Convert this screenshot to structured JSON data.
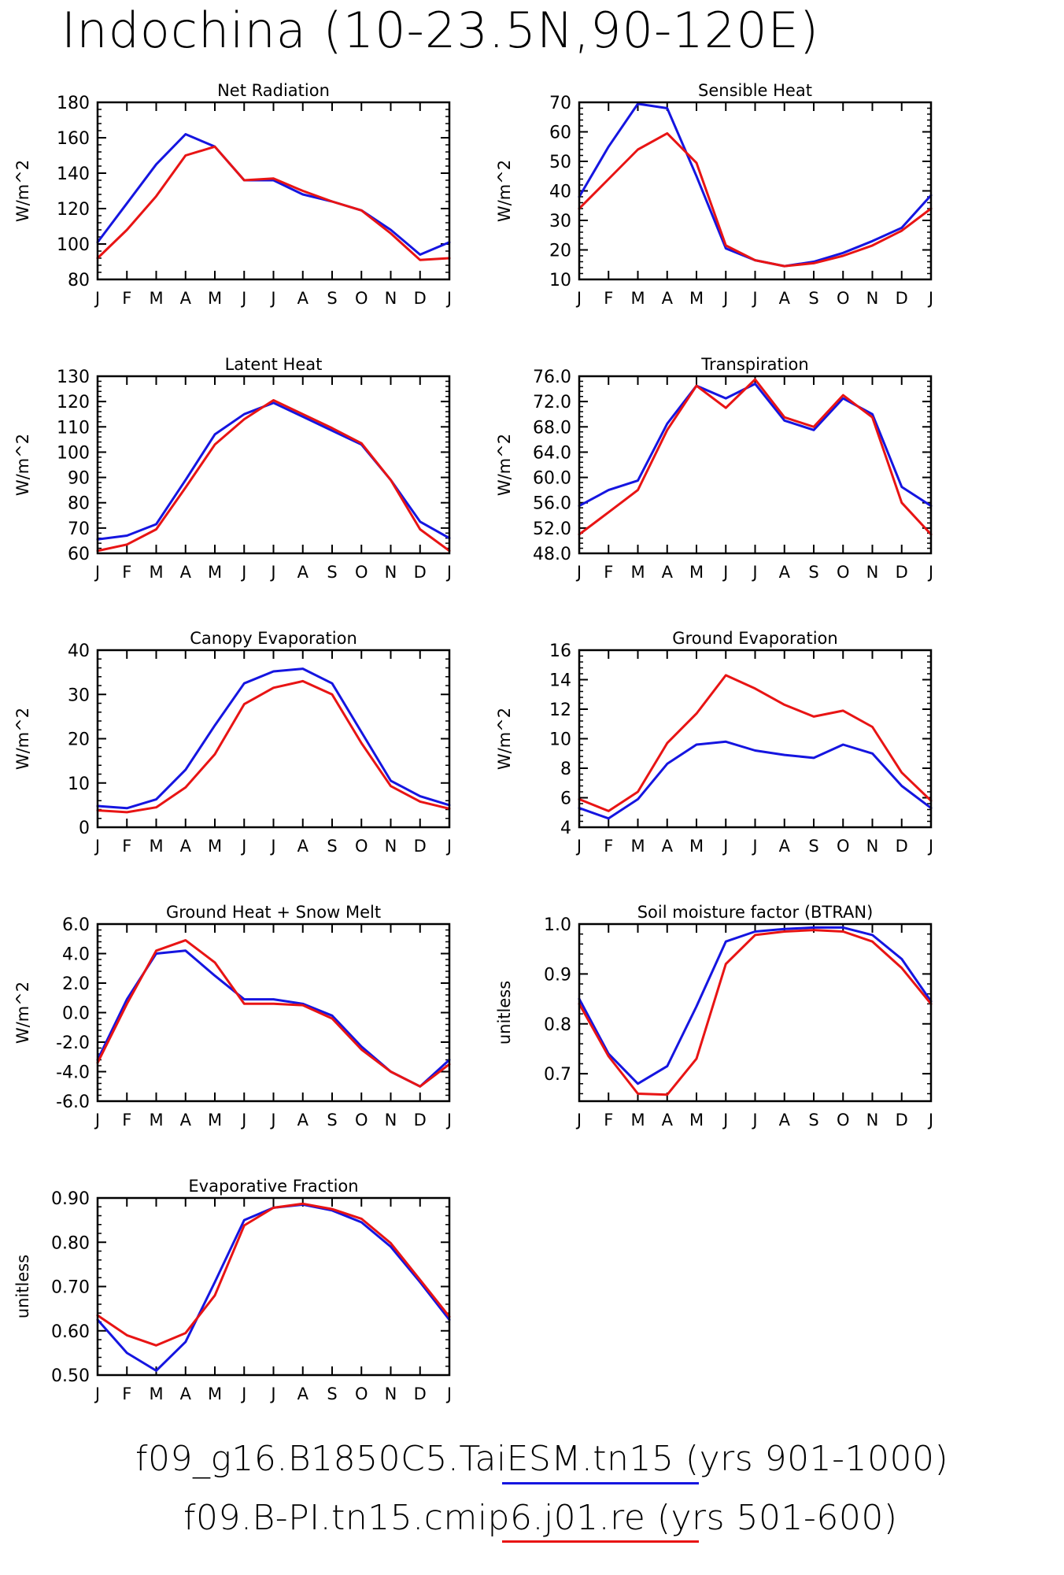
{
  "page_title": "Indochina (10-23.5N,90-120E)",
  "colors": {
    "taiesm": "#1515e0",
    "cmip6": "#e81414",
    "axis": "#000000"
  },
  "legend": [
    {
      "label": "f09_g16.B1850C5.TaiESM.tn15 (yrs 901-1000)",
      "color": "#1515e0"
    },
    {
      "label": "f09.B-PI.tn15.cmip6.j01.re (yrs 501-600)",
      "color": "#e81414"
    }
  ],
  "chart_data": [
    {
      "type": "line",
      "title": "Net Radiation",
      "ylabel": "W/m^2",
      "x": [
        "J",
        "F",
        "M",
        "A",
        "M",
        "J",
        "J",
        "A",
        "S",
        "O",
        "N",
        "D",
        "J"
      ],
      "ylim": [
        80,
        180
      ],
      "yticks": [
        "180",
        "160",
        "140",
        "120",
        "100",
        "80"
      ],
      "yticks_values": [
        180,
        160,
        140,
        120,
        100,
        80
      ],
      "series": [
        {
          "values": [
            101,
            123,
            145,
            162,
            155,
            136,
            136,
            128,
            124,
            119,
            108,
            94,
            101
          ]
        },
        {
          "values": [
            92,
            108,
            127,
            150,
            155,
            136,
            137,
            130,
            124,
            119,
            106,
            91,
            92
          ]
        }
      ]
    },
    {
      "type": "line",
      "title": "Sensible Heat",
      "ylabel": "W/m^2",
      "x": [
        "J",
        "F",
        "M",
        "A",
        "M",
        "J",
        "J",
        "A",
        "S",
        "O",
        "N",
        "D",
        "J"
      ],
      "ylim": [
        10,
        70
      ],
      "yticks": [
        "70",
        "60",
        "50",
        "40",
        "30",
        "20",
        "10"
      ],
      "yticks_values": [
        70,
        60,
        50,
        40,
        30,
        20,
        10
      ],
      "series": [
        {
          "values": [
            38,
            55,
            69.5,
            68,
            45,
            20.5,
            16.5,
            14.5,
            16,
            19,
            23,
            27.5,
            38.5
          ]
        },
        {
          "values": [
            34,
            44,
            54,
            59.5,
            49.5,
            21.5,
            16.5,
            14.5,
            15.5,
            18,
            21.5,
            26.5,
            34
          ]
        }
      ]
    },
    {
      "type": "line",
      "title": "Latent Heat",
      "ylabel": "W/m^2",
      "x": [
        "J",
        "F",
        "M",
        "A",
        "M",
        "J",
        "J",
        "A",
        "S",
        "O",
        "N",
        "D",
        "J"
      ],
      "ylim": [
        60,
        130
      ],
      "yticks": [
        "130",
        "120",
        "110",
        "100",
        "90",
        "80",
        "70",
        "60"
      ],
      "yticks_values": [
        130,
        120,
        110,
        100,
        90,
        80,
        70,
        60
      ],
      "series": [
        {
          "values": [
            65.5,
            67,
            71.5,
            89,
            107,
            115,
            119.5,
            114,
            108.5,
            103,
            89,
            72.5,
            66
          ]
        },
        {
          "values": [
            61,
            63.5,
            69.5,
            86,
            103,
            113,
            120.5,
            115,
            109.5,
            103.5,
            89,
            69.5,
            61
          ]
        }
      ]
    },
    {
      "type": "line",
      "title": "Transpiration",
      "ylabel": "W/m^2",
      "x": [
        "J",
        "F",
        "M",
        "A",
        "M",
        "J",
        "J",
        "A",
        "S",
        "O",
        "N",
        "D",
        "J"
      ],
      "ylim": [
        48,
        76
      ],
      "yticks": [
        "76.0",
        "72.0",
        "68.0",
        "64.0",
        "60.0",
        "56.0",
        "52.0",
        "48.0"
      ],
      "yticks_values": [
        76,
        72,
        68,
        64,
        60,
        56,
        52,
        48
      ],
      "series": [
        {
          "values": [
            55.5,
            58,
            59.5,
            68.5,
            74.5,
            72.5,
            74.8,
            69,
            67.5,
            72.5,
            70,
            58.5,
            55.5
          ]
        },
        {
          "values": [
            51,
            54.5,
            58,
            67.5,
            74.5,
            71,
            75.5,
            69.5,
            68,
            73,
            69.5,
            56,
            51
          ]
        }
      ]
    },
    {
      "type": "line",
      "title": "Canopy Evaporation",
      "ylabel": "W/m^2",
      "x": [
        "J",
        "F",
        "M",
        "A",
        "M",
        "J",
        "J",
        "A",
        "S",
        "O",
        "N",
        "D",
        "J"
      ],
      "ylim": [
        0,
        40
      ],
      "yticks": [
        "40",
        "30",
        "20",
        "10",
        "0"
      ],
      "yticks_values": [
        40,
        30,
        20,
        10,
        0
      ],
      "series": [
        {
          "values": [
            4.8,
            4.3,
            6.3,
            13,
            23,
            32.5,
            35.2,
            35.8,
            32.5,
            21.5,
            10.5,
            7,
            5
          ]
        },
        {
          "values": [
            3.8,
            3.4,
            4.5,
            9,
            16.5,
            27.8,
            31.5,
            33,
            30,
            19,
            9.3,
            5.8,
            4.2
          ]
        }
      ]
    },
    {
      "type": "line",
      "title": "Ground Evaporation",
      "ylabel": "W/m^2",
      "x": [
        "J",
        "F",
        "M",
        "A",
        "M",
        "J",
        "J",
        "A",
        "S",
        "O",
        "N",
        "D",
        "J"
      ],
      "ylim": [
        4,
        16
      ],
      "yticks": [
        "16",
        "14",
        "12",
        "10",
        "8",
        "6",
        "4"
      ],
      "yticks_values": [
        16,
        14,
        12,
        10,
        8,
        6,
        4
      ],
      "series": [
        {
          "values": [
            5.3,
            4.6,
            5.9,
            8.3,
            9.6,
            9.8,
            9.2,
            8.9,
            8.7,
            9.6,
            9,
            6.8,
            5.3
          ]
        },
        {
          "values": [
            5.9,
            5.1,
            6.4,
            9.7,
            11.7,
            14.3,
            13.4,
            12.3,
            11.5,
            11.9,
            10.8,
            7.7,
            5.8
          ]
        }
      ]
    },
    {
      "type": "line",
      "title": "Ground Heat + Snow Melt",
      "ylabel": "W/m^2",
      "x": [
        "J",
        "F",
        "M",
        "A",
        "M",
        "J",
        "J",
        "A",
        "S",
        "O",
        "N",
        "D",
        "J"
      ],
      "ylim": [
        -6,
        6
      ],
      "yticks": [
        "6.0",
        "4.0",
        "2.0",
        "0.0",
        "-2.0",
        "-4.0",
        "-6.0"
      ],
      "yticks_values": [
        6,
        4,
        2,
        0,
        -2,
        -4,
        -6
      ],
      "series": [
        {
          "values": [
            -3.2,
            0.9,
            4,
            4.2,
            2.5,
            0.9,
            0.9,
            0.6,
            -0.2,
            -2.3,
            -4,
            -5,
            -3.2
          ]
        },
        {
          "values": [
            -3.4,
            0.6,
            4.2,
            4.9,
            3.4,
            0.6,
            0.6,
            0.5,
            -0.4,
            -2.5,
            -4,
            -5,
            -3.5
          ]
        }
      ]
    },
    {
      "type": "line",
      "title": "Soil moisture factor (BTRAN)",
      "ylabel": "unitless",
      "x": [
        "J",
        "F",
        "M",
        "A",
        "M",
        "J",
        "J",
        "A",
        "S",
        "O",
        "N",
        "D",
        "J"
      ],
      "ylim": [
        0.645,
        1.0
      ],
      "yticks": [
        "1.0",
        "0.9",
        "0.8",
        "0.7"
      ],
      "yticks_values": [
        1.0,
        0.9,
        0.8,
        0.7
      ],
      "series": [
        {
          "values": [
            0.85,
            0.74,
            0.68,
            0.715,
            0.835,
            0.965,
            0.985,
            0.99,
            0.993,
            0.993,
            0.978,
            0.93,
            0.845
          ]
        },
        {
          "values": [
            0.84,
            0.735,
            0.66,
            0.658,
            0.73,
            0.92,
            0.978,
            0.985,
            0.988,
            0.985,
            0.965,
            0.912,
            0.84
          ]
        }
      ]
    },
    {
      "type": "line",
      "title": "Evaporative Fraction",
      "ylabel": "unitless",
      "x": [
        "J",
        "F",
        "M",
        "A",
        "M",
        "J",
        "J",
        "A",
        "S",
        "O",
        "N",
        "D",
        "J"
      ],
      "ylim": [
        0.5,
        0.9
      ],
      "yticks": [
        "0.90",
        "0.80",
        "0.70",
        "0.60",
        "0.50"
      ],
      "yticks_values": [
        0.9,
        0.8,
        0.7,
        0.6,
        0.5
      ],
      "series": [
        {
          "values": [
            0.625,
            0.55,
            0.51,
            0.575,
            0.71,
            0.85,
            0.878,
            0.885,
            0.872,
            0.845,
            0.79,
            0.71,
            0.625
          ]
        },
        {
          "values": [
            0.635,
            0.59,
            0.567,
            0.595,
            0.68,
            0.838,
            0.878,
            0.887,
            0.875,
            0.853,
            0.798,
            0.715,
            0.632
          ]
        }
      ]
    }
  ]
}
